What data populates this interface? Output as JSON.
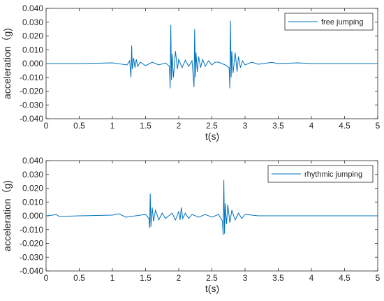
{
  "chart_data": [
    {
      "type": "line",
      "xlabel": "t(s)",
      "ylabel": "acceleration（g)",
      "xlim": [
        0,
        5
      ],
      "ylim": [
        -0.04,
        0.04
      ],
      "xticks": [
        "0",
        "0.5",
        "1",
        "1.5",
        "2",
        "2.5",
        "3",
        "3.5",
        "4",
        "4.5",
        "5"
      ],
      "yticks": [
        "0.040",
        "0.030",
        "0.020",
        "0.010",
        "0.000",
        "-0.010",
        "-0.020",
        "-0.030",
        "-0.040"
      ],
      "grid": false,
      "legend": "top-right",
      "series": [
        {
          "name": "free jumping",
          "color": "#0072BD",
          "x": [
            0,
            0.5,
            1.0,
            1.22,
            1.26,
            1.28,
            1.29,
            1.3,
            1.32,
            1.34,
            1.36,
            1.38,
            1.42,
            1.5,
            1.6,
            1.7,
            1.8,
            1.86,
            1.87,
            1.88,
            1.89,
            1.9,
            1.92,
            1.95,
            1.98,
            2.0,
            2.05,
            2.1,
            2.15,
            2.2,
            2.23,
            2.24,
            2.25,
            2.26,
            2.28,
            2.3,
            2.33,
            2.36,
            2.4,
            2.45,
            2.5,
            2.55,
            2.6,
            2.7,
            2.76,
            2.77,
            2.78,
            2.79,
            2.8,
            2.82,
            2.85,
            2.88,
            2.9,
            2.93,
            2.96,
            3.0,
            3.1,
            3.2,
            3.4,
            3.5,
            3.8,
            4.0,
            4.5,
            5.0
          ],
          "y": [
            0.0,
            0.0,
            0.0005,
            -0.001,
            0.002,
            -0.01,
            0.013,
            -0.004,
            0.004,
            -0.003,
            0.003,
            -0.002,
            0.001,
            -0.0015,
            0.001,
            -0.001,
            0.0005,
            -0.002,
            -0.018,
            0.028,
            -0.012,
            0.007,
            -0.01,
            0.009,
            -0.004,
            0.003,
            -0.003,
            0.0025,
            -0.002,
            0.002,
            -0.017,
            0.025,
            -0.01,
            0.008,
            -0.006,
            0.005,
            -0.003,
            0.003,
            -0.002,
            0.002,
            -0.001,
            0.001,
            0.001,
            -0.001,
            -0.003,
            -0.018,
            0.031,
            -0.01,
            0.009,
            -0.007,
            0.008,
            -0.006,
            0.005,
            -0.003,
            0.002,
            -0.001,
            0.001,
            -0.0005,
            0.0008,
            0.0,
            0.0005,
            0.0,
            0.0,
            0.0
          ]
        }
      ]
    },
    {
      "type": "line",
      "xlabel": "t(s)",
      "ylabel": "acceleration（g)",
      "xlim": [
        0,
        5
      ],
      "ylim": [
        -0.04,
        0.04
      ],
      "xticks": [
        "0",
        "0.5",
        "1",
        "1.5",
        "2",
        "2.5",
        "3",
        "3.5",
        "4",
        "4.5",
        "5"
      ],
      "yticks": [
        "0.040",
        "0.030",
        "0.020",
        "0.010",
        "0.000",
        "-0.010",
        "-0.020",
        "-0.030",
        "-0.040"
      ],
      "grid": false,
      "legend": "top-right",
      "series": [
        {
          "name": "rhythmic jumping",
          "color": "#0072BD",
          "x": [
            0,
            0.1,
            0.15,
            0.2,
            0.5,
            1.0,
            1.1,
            1.2,
            1.5,
            1.55,
            1.56,
            1.57,
            1.58,
            1.6,
            1.62,
            1.65,
            1.7,
            1.75,
            1.8,
            1.9,
            1.95,
            2.0,
            2.02,
            2.04,
            2.06,
            2.1,
            2.15,
            2.2,
            2.3,
            2.4,
            2.5,
            2.6,
            2.66,
            2.67,
            2.68,
            2.69,
            2.7,
            2.72,
            2.74,
            2.77,
            2.8,
            2.85,
            2.9,
            2.95,
            3.0,
            3.2,
            3.5,
            4.0,
            4.5,
            5.0
          ],
          "y": [
            0.0,
            0.0005,
            0.001,
            -0.0005,
            0.0,
            0.0005,
            0.0015,
            -0.001,
            0.001,
            -0.002,
            -0.009,
            0.016,
            -0.008,
            0.006,
            -0.004,
            0.004,
            -0.003,
            0.002,
            -0.002,
            0.002,
            -0.003,
            0.003,
            -0.003,
            0.006,
            -0.002,
            0.002,
            -0.002,
            0.001,
            -0.001,
            0.001,
            -0.001,
            0.001,
            -0.004,
            -0.014,
            0.026,
            -0.013,
            0.009,
            -0.006,
            0.008,
            -0.005,
            0.004,
            -0.003,
            0.002,
            -0.002,
            0.001,
            0.0,
            0.0,
            0.0,
            0.0,
            0.0
          ]
        }
      ]
    }
  ]
}
